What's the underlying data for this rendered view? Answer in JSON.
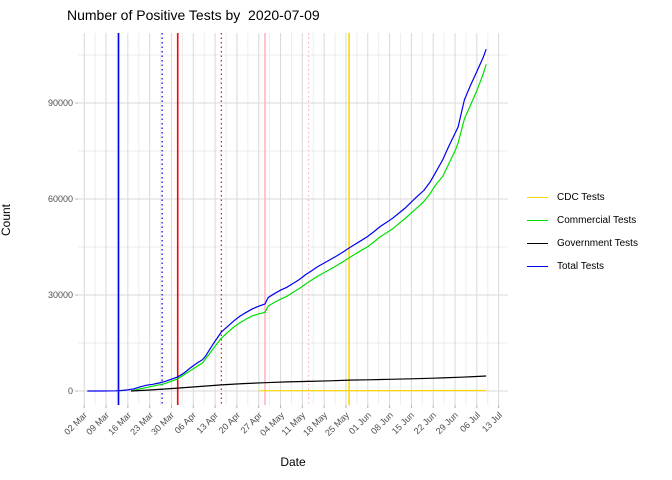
{
  "title": "Number of Positive Tests by  2020-07-09",
  "x_axis": {
    "title": "Date"
  },
  "y_axis": {
    "title": "Count",
    "tick_labels": [
      "0",
      "30000",
      "60000",
      "90000"
    ]
  },
  "legend": {
    "entries": [
      {
        "label": "CDC Tests",
        "color": "#FFD700"
      },
      {
        "label": "Commercial Tests",
        "color": "#00E000"
      },
      {
        "label": "Government Tests",
        "color": "#000000"
      },
      {
        "label": "Total Tests",
        "color": "#0000EE"
      }
    ]
  },
  "chart_data": {
    "type": "line",
    "title": "Number of Positive Tests by  2020-07-09",
    "xlabel": "Date",
    "ylabel": "Count",
    "grid": true,
    "legend_position": "right",
    "x_domain": [
      "2020-02-29",
      "2020-07-16"
    ],
    "y_domain": [
      -4375,
      111875
    ],
    "y_major_ticks": [
      0,
      30000,
      60000,
      90000
    ],
    "y_minor_ticks": [
      15000,
      45000,
      75000,
      105000
    ],
    "x_ticks": [
      {
        "date": "2020-03-02",
        "label": "02 Mar"
      },
      {
        "date": "2020-03-09",
        "label": "09 Mar"
      },
      {
        "date": "2020-03-16",
        "label": "16 Mar"
      },
      {
        "date": "2020-03-23",
        "label": "23 Mar"
      },
      {
        "date": "2020-03-30",
        "label": "30 Mar"
      },
      {
        "date": "2020-04-06",
        "label": "06 Apr"
      },
      {
        "date": "2020-04-13",
        "label": "13 Apr"
      },
      {
        "date": "2020-04-20",
        "label": "20 Apr"
      },
      {
        "date": "2020-04-27",
        "label": "27 Apr"
      },
      {
        "date": "2020-05-04",
        "label": "04 May"
      },
      {
        "date": "2020-05-11",
        "label": "11 May"
      },
      {
        "date": "2020-05-18",
        "label": "18 May"
      },
      {
        "date": "2020-05-25",
        "label": "25 May"
      },
      {
        "date": "2020-06-01",
        "label": "01 Jun"
      },
      {
        "date": "2020-06-08",
        "label": "08 Jun"
      },
      {
        "date": "2020-06-15",
        "label": "15 Jun"
      },
      {
        "date": "2020-06-22",
        "label": "22 Jun"
      },
      {
        "date": "2020-06-29",
        "label": "29 Jun"
      },
      {
        "date": "2020-07-06",
        "label": "06 Jul"
      },
      {
        "date": "2020-07-13",
        "label": "13 Jul"
      }
    ],
    "vlines": [
      {
        "date": "2020-03-13",
        "color": "#0000EE",
        "style": "solid"
      },
      {
        "date": "2020-03-27",
        "color": "#0000EE",
        "style": "dotted"
      },
      {
        "date": "2020-04-01",
        "color": "#FF0000",
        "style": "solid"
      },
      {
        "date": "2020-04-15",
        "color": "#FF0000",
        "style": "dotted"
      },
      {
        "date": "2020-04-29",
        "color": "#FFB6C1",
        "style": "solid"
      },
      {
        "date": "2020-05-13",
        "color": "#FFB6C1",
        "style": "dotted"
      },
      {
        "date": "2020-05-26",
        "color": "#FFD700",
        "style": "solid"
      }
    ],
    "series": [
      {
        "name": "CDC Tests",
        "color": "#FFD700",
        "points": [
          [
            "2020-04-27",
            100
          ],
          [
            "2020-07-09",
            150
          ]
        ]
      },
      {
        "name": "Commercial Tests",
        "color": "#00E000",
        "points": [
          [
            "2020-03-17",
            0
          ],
          [
            "2020-03-20",
            700
          ],
          [
            "2020-03-24",
            1500
          ],
          [
            "2020-03-28",
            2300
          ],
          [
            "2020-04-01",
            3800
          ],
          [
            "2020-04-05",
            6300
          ],
          [
            "2020-04-09",
            8800
          ],
          [
            "2020-04-11",
            11400
          ],
          [
            "2020-04-13",
            14000
          ],
          [
            "2020-04-15",
            16500
          ],
          [
            "2020-04-17",
            18300
          ],
          [
            "2020-04-19",
            20000
          ],
          [
            "2020-04-21",
            21300
          ],
          [
            "2020-04-23",
            22500
          ],
          [
            "2020-04-25",
            23500
          ],
          [
            "2020-04-27",
            24100
          ],
          [
            "2020-04-29",
            24600
          ],
          [
            "2020-04-30",
            26500
          ],
          [
            "2020-05-02",
            27700
          ],
          [
            "2020-05-04",
            28700
          ],
          [
            "2020-05-06",
            29600
          ],
          [
            "2020-05-08",
            30800
          ],
          [
            "2020-05-10",
            32000
          ],
          [
            "2020-05-12",
            33400
          ],
          [
            "2020-05-14",
            34700
          ],
          [
            "2020-05-16",
            35900
          ],
          [
            "2020-05-18",
            37000
          ],
          [
            "2020-05-20",
            38100
          ],
          [
            "2020-05-22",
            39200
          ],
          [
            "2020-05-24",
            40400
          ],
          [
            "2020-05-26",
            41600
          ],
          [
            "2020-05-28",
            42800
          ],
          [
            "2020-05-30",
            44000
          ],
          [
            "2020-06-01",
            45100
          ],
          [
            "2020-06-03",
            46600
          ],
          [
            "2020-06-05",
            48200
          ],
          [
            "2020-06-07",
            49400
          ],
          [
            "2020-06-09",
            50700
          ],
          [
            "2020-06-11",
            52300
          ],
          [
            "2020-06-13",
            53900
          ],
          [
            "2020-06-15",
            55700
          ],
          [
            "2020-06-17",
            57400
          ],
          [
            "2020-06-19",
            59200
          ],
          [
            "2020-06-21",
            61700
          ],
          [
            "2020-06-23",
            64700
          ],
          [
            "2020-06-25",
            67000
          ],
          [
            "2020-06-27",
            71000
          ],
          [
            "2020-06-29",
            75000
          ],
          [
            "2020-06-30",
            77500
          ],
          [
            "2020-07-02",
            85000
          ],
          [
            "2020-07-04",
            89400
          ],
          [
            "2020-07-06",
            93800
          ],
          [
            "2020-07-08",
            99000
          ],
          [
            "2020-07-09",
            102100
          ]
        ]
      },
      {
        "name": "Government Tests",
        "color": "#000000",
        "points": [
          [
            "2020-03-17",
            0
          ],
          [
            "2020-03-23",
            300
          ],
          [
            "2020-04-01",
            900
          ],
          [
            "2020-04-08",
            1400
          ],
          [
            "2020-04-15",
            1900
          ],
          [
            "2020-04-22",
            2300
          ],
          [
            "2020-04-29",
            2600
          ],
          [
            "2020-05-06",
            2850
          ],
          [
            "2020-05-13",
            3000
          ],
          [
            "2020-05-20",
            3200
          ],
          [
            "2020-05-26",
            3400
          ],
          [
            "2020-06-01",
            3500
          ],
          [
            "2020-06-08",
            3650
          ],
          [
            "2020-06-15",
            3800
          ],
          [
            "2020-06-22",
            4000
          ],
          [
            "2020-06-25",
            4100
          ],
          [
            "2020-07-01",
            4300
          ],
          [
            "2020-07-05",
            4500
          ],
          [
            "2020-07-09",
            4700
          ]
        ]
      },
      {
        "name": "Total Tests",
        "color": "#0000EE",
        "points": [
          [
            "2020-03-03",
            0
          ],
          [
            "2020-03-08",
            0
          ],
          [
            "2020-03-12",
            50
          ],
          [
            "2020-03-14",
            150
          ],
          [
            "2020-03-16",
            350
          ],
          [
            "2020-03-18",
            700
          ],
          [
            "2020-03-20",
            1300
          ],
          [
            "2020-03-22",
            1800
          ],
          [
            "2020-03-24",
            2100
          ],
          [
            "2020-03-26",
            2500
          ],
          [
            "2020-03-28",
            3000
          ],
          [
            "2020-03-30",
            3700
          ],
          [
            "2020-04-01",
            4400
          ],
          [
            "2020-04-03",
            5600
          ],
          [
            "2020-04-05",
            7200
          ],
          [
            "2020-04-07",
            8600
          ],
          [
            "2020-04-09",
            9800
          ],
          [
            "2020-04-10",
            11000
          ],
          [
            "2020-04-11",
            12600
          ],
          [
            "2020-04-13",
            15600
          ],
          [
            "2020-04-15",
            18400
          ],
          [
            "2020-04-17",
            20200
          ],
          [
            "2020-04-19",
            21900
          ],
          [
            "2020-04-21",
            23400
          ],
          [
            "2020-04-23",
            24600
          ],
          [
            "2020-04-25",
            25700
          ],
          [
            "2020-04-27",
            26500
          ],
          [
            "2020-04-29",
            27200
          ],
          [
            "2020-04-30",
            29200
          ],
          [
            "2020-05-02",
            30400
          ],
          [
            "2020-05-04",
            31500
          ],
          [
            "2020-05-06",
            32400
          ],
          [
            "2020-05-08",
            33600
          ],
          [
            "2020-05-10",
            34800
          ],
          [
            "2020-05-12",
            36300
          ],
          [
            "2020-05-14",
            37600
          ],
          [
            "2020-05-16",
            38900
          ],
          [
            "2020-05-18",
            40000
          ],
          [
            "2020-05-20",
            41100
          ],
          [
            "2020-05-22",
            42200
          ],
          [
            "2020-05-24",
            43400
          ],
          [
            "2020-05-26",
            44700
          ],
          [
            "2020-05-28",
            45900
          ],
          [
            "2020-05-30",
            47100
          ],
          [
            "2020-06-01",
            48300
          ],
          [
            "2020-06-03",
            49800
          ],
          [
            "2020-06-05",
            51400
          ],
          [
            "2020-06-07",
            52700
          ],
          [
            "2020-06-09",
            54000
          ],
          [
            "2020-06-11",
            55600
          ],
          [
            "2020-06-13",
            57200
          ],
          [
            "2020-06-15",
            59100
          ],
          [
            "2020-06-17",
            60900
          ],
          [
            "2020-06-19",
            62700
          ],
          [
            "2020-06-21",
            65300
          ],
          [
            "2020-06-23",
            68700
          ],
          [
            "2020-06-25",
            72200
          ],
          [
            "2020-06-27",
            76500
          ],
          [
            "2020-06-29",
            80500
          ],
          [
            "2020-06-30",
            82500
          ],
          [
            "2020-07-02",
            91000
          ],
          [
            "2020-07-04",
            95600
          ],
          [
            "2020-07-06",
            99800
          ],
          [
            "2020-07-08",
            104200
          ],
          [
            "2020-07-09",
            106800
          ]
        ]
      }
    ]
  },
  "style": {
    "grid_major": "#D9D9D9",
    "grid_minor": "#EDEDED",
    "tick_mark": "#B3B3B3",
    "tick_label": "#4d4d4d"
  }
}
